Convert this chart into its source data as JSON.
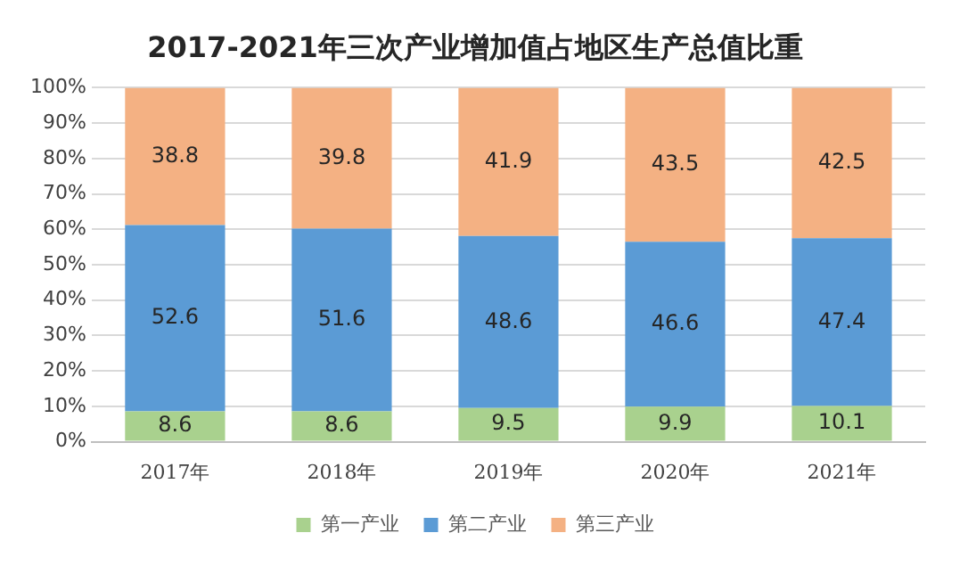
{
  "chart_data": {
    "type": "bar",
    "title": "2017-2021年三次产业增加值占地区生产总值比重",
    "categories": [
      "2017年",
      "2018年",
      "2019年",
      "2020年",
      "2021年"
    ],
    "stacked": true,
    "ylim": [
      0,
      100
    ],
    "yticks": [
      {
        "value": 0,
        "label": "0%"
      },
      {
        "value": 10,
        "label": "10%"
      },
      {
        "value": 20,
        "label": "20%"
      },
      {
        "value": 30,
        "label": "30%"
      },
      {
        "value": 40,
        "label": "40%"
      },
      {
        "value": 50,
        "label": "50%"
      },
      {
        "value": 60,
        "label": "60%"
      },
      {
        "value": 70,
        "label": "70%"
      },
      {
        "value": 80,
        "label": "80%"
      },
      {
        "value": 90,
        "label": "90%"
      },
      {
        "value": 100,
        "label": "100%"
      }
    ],
    "grid": "y",
    "legend": "bottom",
    "data_labels": true,
    "series": [
      {
        "name": "第一产业",
        "color": "#a9d18e",
        "values": [
          8.6,
          8.6,
          9.5,
          9.9,
          10.1
        ]
      },
      {
        "name": "第二产业",
        "color": "#5b9bd5",
        "values": [
          52.6,
          51.6,
          48.6,
          46.6,
          47.4
        ]
      },
      {
        "name": "第三产业",
        "color": "#f4b183",
        "values": [
          38.8,
          39.8,
          41.9,
          43.5,
          42.5
        ]
      }
    ]
  }
}
